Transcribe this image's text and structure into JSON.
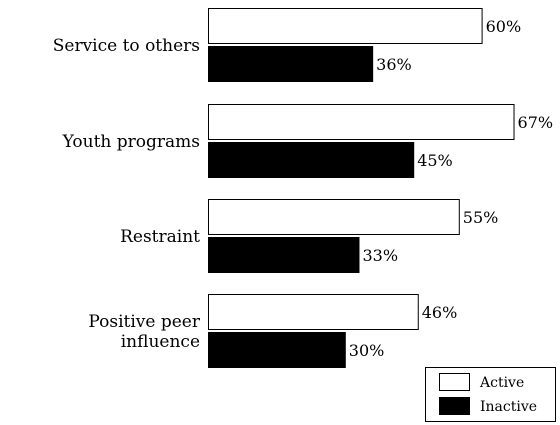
{
  "chart_data": {
    "type": "bar",
    "orientation": "horizontal",
    "categories": [
      "Service to others",
      "Youth programs",
      "Restraint",
      "Positive peer influence"
    ],
    "category_label_lines": [
      [
        "Service to others"
      ],
      [
        "Youth programs"
      ],
      [
        "Restraint"
      ],
      [
        "Positive peer",
        "influence"
      ]
    ],
    "series": [
      {
        "name": "Active",
        "values": [
          60,
          67,
          55,
          46
        ],
        "labels": [
          "60%",
          "67%",
          "55%",
          "46%"
        ],
        "color": "#ffffff"
      },
      {
        "name": "Inactive",
        "values": [
          36,
          45,
          33,
          30
        ],
        "labels": [
          "36%",
          "45%",
          "33%",
          "30%"
        ],
        "color": "#000000"
      }
    ],
    "title": "",
    "xlabel": "",
    "ylabel": "",
    "xlim": [
      0,
      100
    ],
    "grid": false,
    "legend": {
      "position": "bottom-right",
      "entries": [
        "Active",
        "Inactive"
      ]
    }
  }
}
